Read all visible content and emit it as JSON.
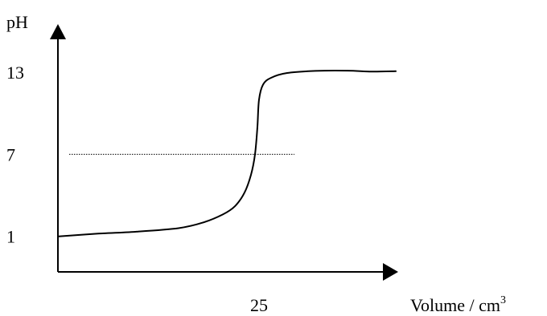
{
  "chart_data": {
    "type": "line",
    "title": "",
    "ylabel": "pH",
    "xlabel": "Volume / cm",
    "xlabel_superscript": "3",
    "x_ticks": [
      25
    ],
    "y_ticks": [
      1,
      7,
      13
    ],
    "xlim": [
      0,
      50
    ],
    "ylim": [
      -1.6,
      16
    ],
    "grid": false,
    "guide_line": {
      "y": 7,
      "x_from": 0,
      "x_to": 30,
      "style": "dotted"
    },
    "series": [
      {
        "points": [
          [
            0.1,
            1.0
          ],
          [
            5,
            1.2
          ],
          [
            10,
            1.35
          ],
          [
            15,
            1.6
          ],
          [
            18,
            2.0
          ],
          [
            20.5,
            2.6
          ],
          [
            22,
            3.2
          ],
          [
            23.2,
            4.2
          ],
          [
            24.0,
            5.5
          ],
          [
            24.5,
            7.0
          ],
          [
            24.8,
            9.0
          ],
          [
            25.0,
            11.0
          ],
          [
            25.5,
            12.1
          ],
          [
            26.5,
            12.6
          ],
          [
            28.5,
            12.95
          ],
          [
            32,
            13.1
          ],
          [
            36,
            13.12
          ],
          [
            39,
            13.05
          ],
          [
            42,
            13.08
          ]
        ]
      }
    ]
  }
}
